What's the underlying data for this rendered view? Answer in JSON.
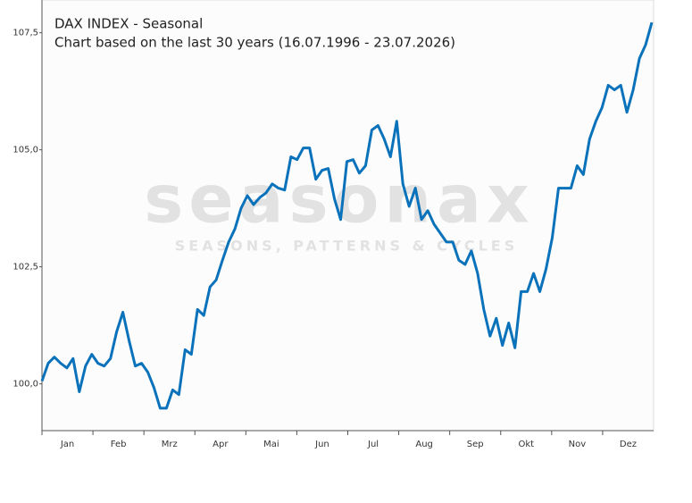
{
  "chart_data": {
    "type": "line",
    "title": "DAX INDEX - Seasonal",
    "subtitle": "Chart based on the last 30 years (16.07.1996 - 23.07.2026)",
    "watermark": "seasonax",
    "watermark_tagline": "SEASONS, PATTERNS & CYCLES",
    "x_labels": [
      "Jan",
      "Feb",
      "Mrz",
      "Apr",
      "Mai",
      "Jun",
      "Jul",
      "Aug",
      "Sep",
      "Okt",
      "Nov",
      "Dez"
    ],
    "color": "#0a72ba",
    "ylim": [
      99,
      108.2
    ],
    "yticks": [
      {
        "value": 100,
        "label": "100,0"
      },
      {
        "value": 102.5,
        "label": "102,5"
      },
      {
        "value": 105,
        "label": "105,0"
      },
      {
        "value": 107.5,
        "label": "107,5"
      }
    ],
    "values": [
      100.06,
      100.44,
      100.57,
      100.44,
      100.34,
      100.54,
      99.83,
      100.38,
      100.63,
      100.44,
      100.38,
      100.54,
      101.11,
      101.53,
      100.92,
      100.38,
      100.44,
      100.25,
      99.92,
      99.48,
      99.48,
      99.87,
      99.77,
      100.73,
      100.63,
      101.59,
      101.46,
      102.07,
      102.22,
      102.64,
      103.03,
      103.31,
      103.75,
      104.02,
      103.83,
      103.98,
      104.08,
      104.27,
      104.18,
      104.14,
      104.85,
      104.79,
      105.04,
      105.04,
      104.37,
      104.56,
      104.6,
      103.95,
      103.51,
      104.75,
      104.79,
      104.5,
      104.66,
      105.42,
      105.52,
      105.23,
      104.85,
      105.61,
      104.27,
      103.79,
      104.18,
      103.51,
      103.7,
      103.41,
      103.22,
      103.03,
      103.03,
      102.64,
      102.55,
      102.84,
      102.36,
      101.59,
      101.02,
      101.4,
      100.82,
      101.3,
      100.77,
      101.97,
      101.97,
      102.36,
      101.97,
      102.45,
      103.12,
      104.18,
      104.18,
      104.18,
      104.66,
      104.47,
      105.23,
      105.61,
      105.9,
      106.38,
      106.28,
      106.38,
      105.8,
      106.28,
      106.95,
      107.24,
      107.72
    ]
  }
}
